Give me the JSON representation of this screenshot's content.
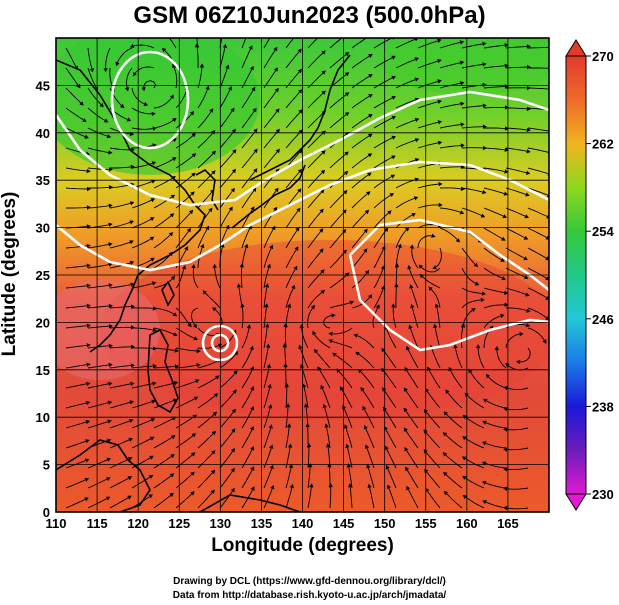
{
  "title": "GSM 06Z10Jun2023 (500.0hPa)",
  "xlabel": "Longitude (degrees)",
  "ylabel": "Latitude  (degrees)",
  "credits": {
    "line1": "Drawing by DCL (https://www.gfd-dennou.org/library/dcl/)",
    "line2": "Data from http://database.rish.kyoto-u.ac.jp/arch/jmadata/"
  },
  "map": {
    "lon_range": [
      110,
      170
    ],
    "lat_range": [
      0,
      50
    ],
    "lon_ticks": [
      110,
      115,
      120,
      125,
      130,
      135,
      140,
      145,
      150,
      155,
      160,
      165
    ],
    "lat_ticks": [
      0,
      5,
      10,
      15,
      20,
      25,
      30,
      35,
      40,
      45
    ],
    "grid": true,
    "field": "temperature",
    "overlays": [
      "coastlines",
      "streamlines",
      "white contours"
    ]
  },
  "colorbar": {
    "ticks": [
      230,
      238,
      246,
      254,
      262,
      270
    ],
    "range": [
      230,
      270
    ],
    "colors": [
      "#e01ad0",
      "#6b1cbd",
      "#1a1ad6",
      "#1a9ee6",
      "#21d3c0",
      "#36c93a",
      "#8ed81e",
      "#e6d21e",
      "#f0941e",
      "#ec5a2a",
      "#e33a2c"
    ]
  },
  "features": {
    "cyclones": [
      {
        "name": "low-center",
        "lon": 122,
        "lat": 44.5
      },
      {
        "name": "typhoon-center",
        "lon": 130,
        "lat": 19.5
      }
    ],
    "anticyclones": [
      {
        "name": "subtropical-high",
        "lon": 155,
        "lat": 28.5
      }
    ]
  }
}
